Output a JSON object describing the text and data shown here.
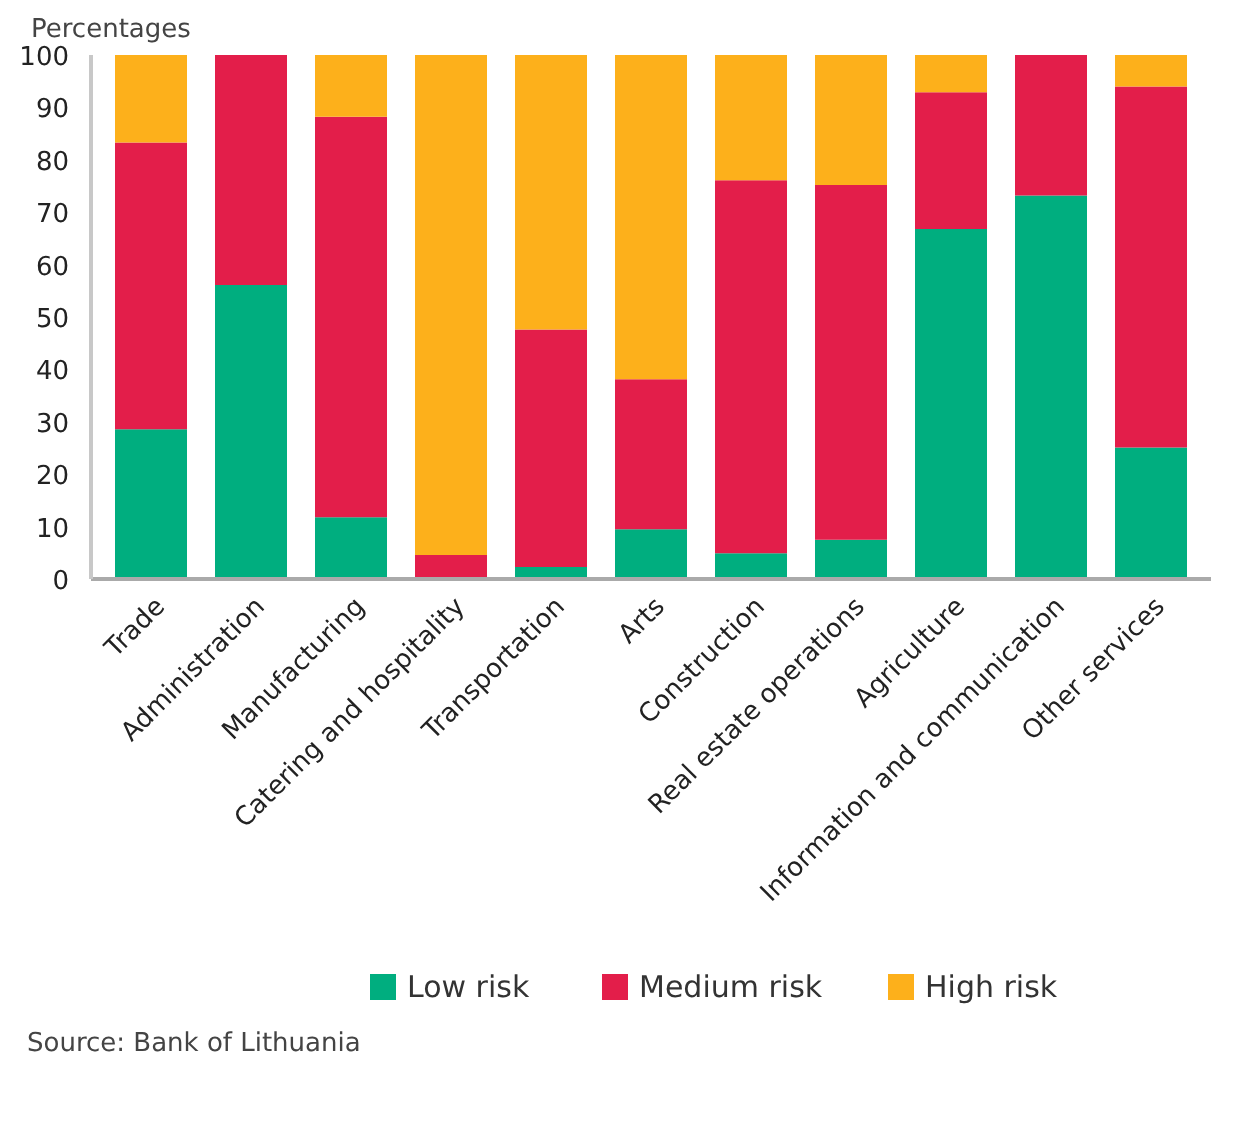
{
  "chart_data": {
    "type": "bar",
    "stacked": true,
    "ylabel": "Percentages",
    "categories": [
      "Trade",
      "Administration",
      "Manufacturing",
      "Catering and hospitality",
      "Transportation",
      "Arts",
      "Construction",
      "Real estate operations",
      "Agriculture",
      "Information and communication",
      "Other services"
    ],
    "series": [
      {
        "name": "Low risk",
        "color": "#00ae7f",
        "values": [
          28.6,
          56.1,
          11.8,
          0,
          2.3,
          9.5,
          4.9,
          7.5,
          66.8,
          73.2,
          25.1
        ]
      },
      {
        "name": "Medium risk",
        "color": "#e31e4a",
        "values": [
          54.7,
          43.9,
          76.4,
          4.6,
          45.3,
          28.6,
          71.2,
          67.7,
          26.1,
          26.8,
          68.9
        ]
      },
      {
        "name": "High risk",
        "color": "#fdb01b",
        "values": [
          16.7,
          0,
          11.8,
          95.4,
          52.4,
          61.9,
          23.9,
          24.8,
          7.1,
          0,
          6.0
        ]
      }
    ],
    "ylim": [
      0,
      100
    ],
    "yticks": [
      0,
      10,
      20,
      30,
      40,
      50,
      60,
      70,
      80,
      90,
      100
    ],
    "grid": false,
    "legend": "bottom",
    "annotations": [
      "Source:  Bank of Lithuania"
    ]
  }
}
